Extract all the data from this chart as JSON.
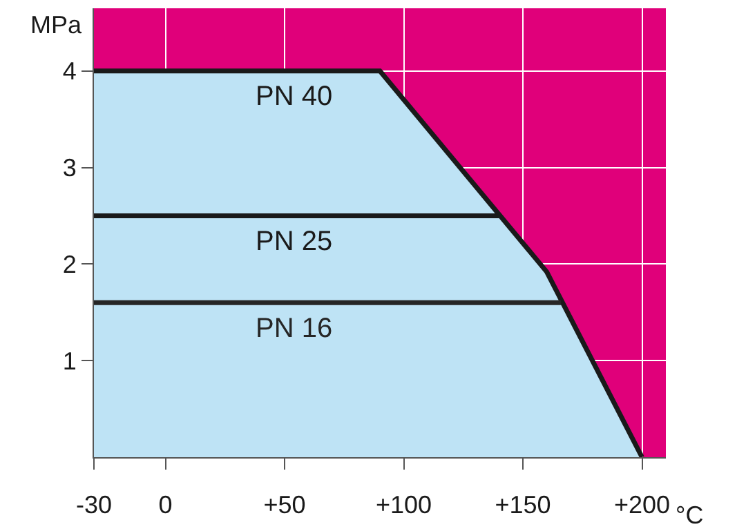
{
  "chart_data": {
    "type": "line",
    "xlabel": "°C",
    "ylabel": "MPa",
    "xlim": [
      -30,
      210
    ],
    "ylim": [
      0,
      4.65
    ],
    "xticks": [
      -30,
      0,
      {
        "value": 50,
        "label": "+50"
      },
      {
        "value": 100,
        "label": "+100"
      },
      {
        "value": 150,
        "label": "+150"
      },
      {
        "value": 200,
        "label": "+200"
      }
    ],
    "yticks": [
      1,
      2,
      3,
      4
    ],
    "grid": true,
    "bands": [
      {
        "axis": "y",
        "from": 0,
        "to": 4.65,
        "color": "#e0007a"
      }
    ],
    "legend": false,
    "marker": "none",
    "line_style": "solid",
    "series": [
      {
        "name": "PN 40",
        "type": "area",
        "color": "#bee3f5",
        "x": [
          -30,
          90,
          160,
          200
        ],
        "values": [
          4,
          4,
          1.92,
          0
        ]
      },
      {
        "name": "PN 25",
        "color": "#1a1a1a",
        "x": [
          -30,
          140
        ],
        "values": [
          2.5,
          2.5
        ]
      },
      {
        "name": "PN 16",
        "color": "#262626",
        "x": [
          -30,
          166
        ],
        "values": [
          1.6,
          1.6
        ]
      }
    ]
  }
}
